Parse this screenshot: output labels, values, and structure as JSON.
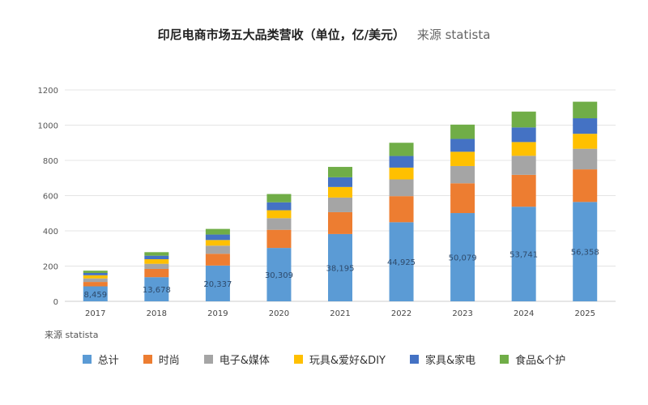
{
  "title": "印尼电商市场五大品类营收（单位，亿/美元）",
  "subtitle": "来源 statista",
  "source": "来源 statista",
  "chart_data": {
    "type": "bar",
    "stacked": true,
    "categories": [
      "2017",
      "2018",
      "2019",
      "2020",
      "2021",
      "2022",
      "2023",
      "2024",
      "2025"
    ],
    "ylim": [
      0,
      1200
    ],
    "yticks": [
      0,
      200,
      400,
      600,
      800,
      1000,
      1200
    ],
    "grid": true,
    "legend": "bottom",
    "series": [
      {
        "name": "总计",
        "color": "#5b9bd5",
        "values": [
          85,
          137,
          203,
          303,
          382,
          449,
          501,
          537,
          564
        ],
        "labels": [
          "8,459",
          "13,678",
          "20,337",
          "30,309",
          "38,195",
          "44,925",
          "50,079",
          "53,741",
          "56,358"
        ]
      },
      {
        "name": "时尚",
        "color": "#ed7d31",
        "values": [
          25,
          47,
          67,
          103,
          124,
          148,
          169,
          181,
          185
        ]
      },
      {
        "name": "电子&媒体",
        "color": "#a5a5a5",
        "values": [
          20,
          29,
          46,
          66,
          83,
          95,
          98,
          108,
          117
        ]
      },
      {
        "name": "玩具&爱好&DIY",
        "color": "#ffc000",
        "values": [
          18,
          26,
          32,
          45,
          60,
          67,
          81,
          78,
          85
        ]
      },
      {
        "name": "家具&家电",
        "color": "#4472c4",
        "values": [
          13,
          20,
          31,
          45,
          55,
          66,
          73,
          83,
          88
        ]
      },
      {
        "name": "食品&个护",
        "color": "#70ad47",
        "values": [
          13,
          20,
          32,
          47,
          59,
          75,
          81,
          90,
          94
        ]
      }
    ]
  }
}
